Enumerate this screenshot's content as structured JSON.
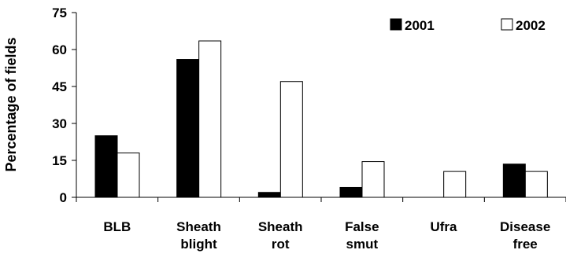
{
  "chart_data": {
    "type": "bar",
    "title": "",
    "xlabel": "",
    "ylabel": "Percentage of fields",
    "ylim": [
      0,
      75
    ],
    "yticks": [
      0,
      15,
      30,
      45,
      60,
      75
    ],
    "grid": false,
    "legend_position": "top-right",
    "categories": [
      [
        "BLB"
      ],
      [
        "Sheath",
        "blight"
      ],
      [
        "Sheath",
        "rot"
      ],
      [
        "False",
        "smut"
      ],
      [
        "Ufra"
      ],
      [
        "Disease",
        "free"
      ]
    ],
    "series": [
      {
        "name": "2001",
        "values": [
          25,
          56,
          2,
          4,
          0,
          13.5
        ],
        "fill": "#000000"
      },
      {
        "name": "2002",
        "values": [
          18,
          63.5,
          47,
          14.5,
          10.5,
          10.5
        ],
        "fill": "#ffffff"
      }
    ]
  }
}
